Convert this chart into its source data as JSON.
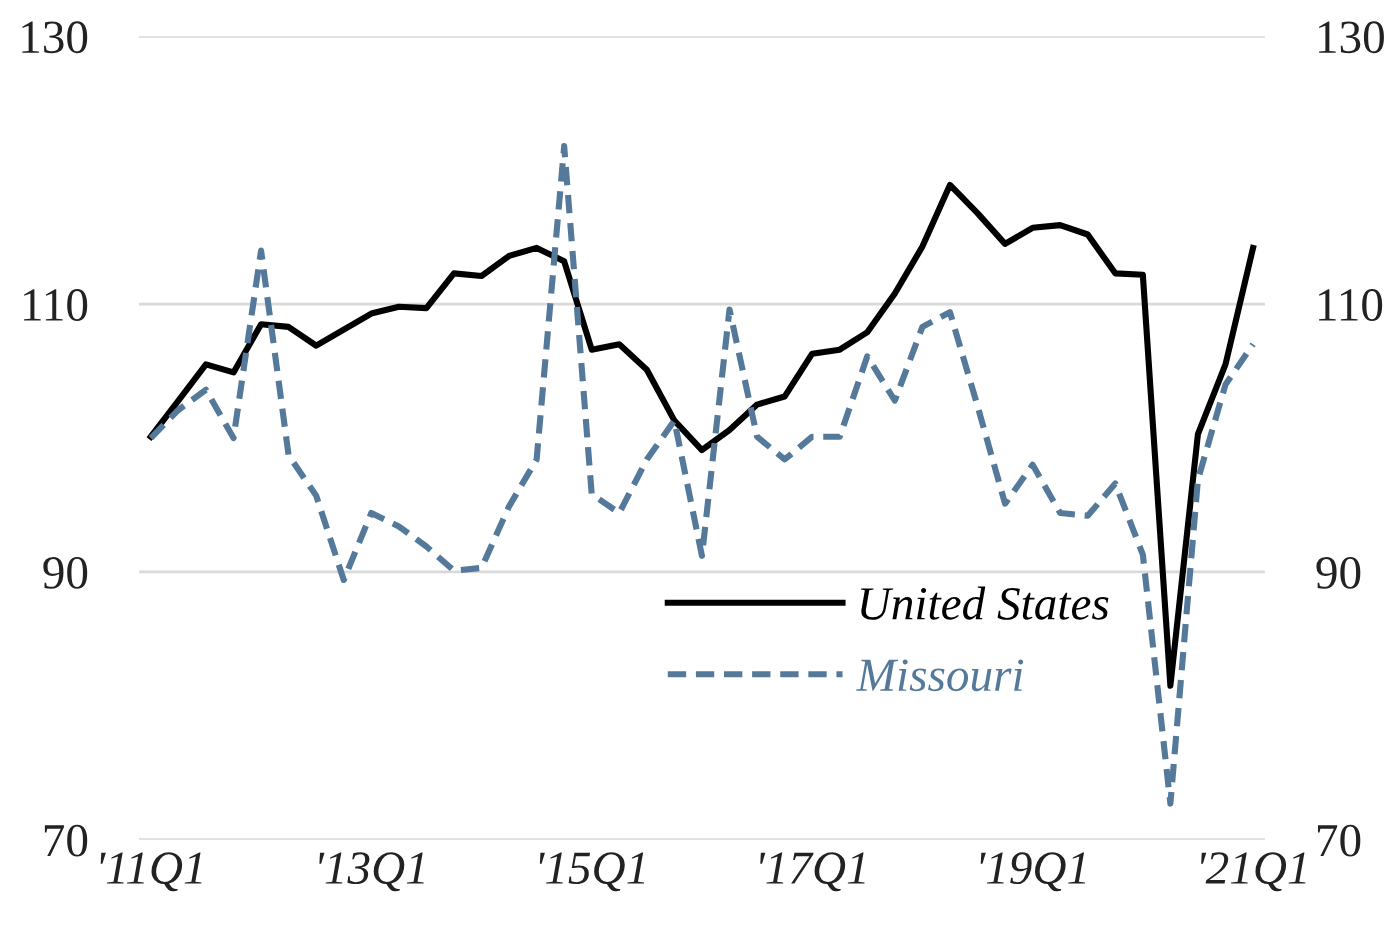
{
  "chart_data": {
    "type": "line",
    "categories": [
      "'11Q1",
      null,
      null,
      null,
      null,
      null,
      null,
      null,
      "'13Q1",
      null,
      null,
      null,
      null,
      null,
      null,
      null,
      "'15Q1",
      null,
      null,
      null,
      null,
      null,
      null,
      null,
      "'17Q1",
      null,
      null,
      null,
      null,
      null,
      null,
      null,
      "'19Q1",
      null,
      null,
      null,
      null,
      null,
      null,
      null,
      "'21Q1"
    ],
    "series": [
      {
        "name": "United States",
        "color": "#000000",
        "line_style": "solid",
        "values": [
          100.1,
          102.8,
          105.5,
          104.9,
          108.5,
          108.3,
          106.9,
          108.1,
          109.3,
          109.8,
          109.7,
          112.3,
          112.1,
          113.6,
          114.2,
          113.2,
          106.6,
          107.0,
          105.1,
          101.3,
          99.1,
          100.6,
          102.5,
          103.1,
          106.3,
          106.6,
          107.9,
          110.8,
          114.3,
          118.9,
          116.8,
          114.5,
          115.7,
          115.9,
          115.2,
          112.3,
          112.2,
          81.5,
          100.3,
          105.5,
          114.2
        ]
      },
      {
        "name": "Missouri",
        "color": "#55799a",
        "line_style": "dashed",
        "values": [
          100.0,
          102.1,
          103.6,
          100.0,
          114.0,
          98.7,
          95.7,
          89.4,
          94.4,
          93.4,
          91.9,
          90.1,
          90.3,
          94.9,
          98.4,
          121.8,
          95.8,
          94.4,
          98.4,
          101.3,
          91.2,
          109.6,
          100.1,
          98.4,
          100.1,
          100.1,
          106.1,
          102.8,
          108.3,
          109.4,
          102.4,
          95.1,
          98.0,
          94.4,
          94.2,
          96.6,
          91.3,
          72.7,
          96.9,
          104.0,
          107.0
        ]
      }
    ],
    "ylim": [
      70,
      130
    ],
    "yticks": [
      70,
      90,
      110,
      130
    ],
    "y2lim": [
      70,
      130
    ],
    "y2ticks": [
      70,
      90,
      110,
      130
    ],
    "grid": "y",
    "legend": "bottom right",
    "marker": "none"
  }
}
